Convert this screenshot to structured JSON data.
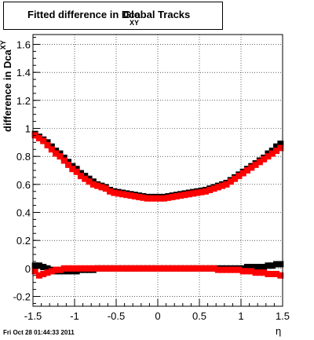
{
  "title": {
    "main": "Fitted difference in Dca",
    "subscript": "XY",
    "tail": "Global Tracks"
  },
  "footer": "Fri Oct 28 01:44:33 2011",
  "chart_data": {
    "type": "scatter",
    "xlabel": "η",
    "ylabel_main": "difference in Dca",
    "ylabel_sub": "XY",
    "xlim": [
      -1.5,
      1.5
    ],
    "ylim": [
      -0.27,
      1.67
    ],
    "x_ticks": [
      -1.5,
      -1,
      -0.5,
      0,
      0.5,
      1,
      1.5
    ],
    "x_tick_labels": [
      "-1.5",
      "-1",
      "-0.5",
      "0",
      "0.5",
      "1",
      "1.5"
    ],
    "y_ticks": [
      -0.2,
      0,
      0.2,
      0.4,
      0.6,
      0.8,
      1,
      1.2,
      1.4,
      1.6
    ],
    "y_tick_labels": [
      "-0.2",
      "0",
      "0.2",
      "0.4",
      "0.6",
      "0.8",
      "1",
      "1.2",
      "1.4",
      "1.6"
    ],
    "grid": true,
    "series": [
      {
        "color": "#000000",
        "marker": "square",
        "x": [
          -1.475,
          -1.425,
          -1.375,
          -1.325,
          -1.275,
          -1.225,
          -1.175,
          -1.125,
          -1.075,
          -1.025,
          -0.975,
          -0.925,
          -0.875,
          -0.825,
          -0.775,
          -0.725,
          -0.675,
          -0.625,
          -0.575,
          -0.525,
          -0.475,
          -0.425,
          -0.375,
          -0.325,
          -0.275,
          -0.225,
          -0.175,
          -0.125,
          -0.075,
          -0.025,
          0.025,
          0.075,
          0.125,
          0.175,
          0.225,
          0.275,
          0.325,
          0.375,
          0.425,
          0.475,
          0.525,
          0.575,
          0.625,
          0.675,
          0.725,
          0.775,
          0.825,
          0.875,
          0.925,
          0.975,
          1.025,
          1.075,
          1.125,
          1.175,
          1.225,
          1.275,
          1.325,
          1.375,
          1.425,
          1.475
        ],
        "y": [
          0.96,
          0.94,
          0.92,
          0.9,
          0.87,
          0.84,
          0.82,
          0.79,
          0.76,
          0.73,
          0.71,
          0.68,
          0.66,
          0.64,
          0.62,
          0.6,
          0.59,
          0.58,
          0.56,
          0.55,
          0.545,
          0.54,
          0.535,
          0.53,
          0.525,
          0.52,
          0.515,
          0.51,
          0.51,
          0.51,
          0.51,
          0.51,
          0.515,
          0.52,
          0.525,
          0.53,
          0.535,
          0.54,
          0.545,
          0.55,
          0.555,
          0.56,
          0.57,
          0.58,
          0.59,
          0.6,
          0.61,
          0.63,
          0.65,
          0.67,
          0.69,
          0.71,
          0.73,
          0.75,
          0.77,
          0.79,
          0.82,
          0.84,
          0.87,
          0.89
        ]
      },
      {
        "color": "#ff0000",
        "marker": "square",
        "x": [
          -1.475,
          -1.425,
          -1.375,
          -1.325,
          -1.275,
          -1.225,
          -1.175,
          -1.125,
          -1.075,
          -1.025,
          -0.975,
          -0.925,
          -0.875,
          -0.825,
          -0.775,
          -0.725,
          -0.675,
          -0.625,
          -0.575,
          -0.525,
          -0.475,
          -0.425,
          -0.375,
          -0.325,
          -0.275,
          -0.225,
          -0.175,
          -0.125,
          -0.075,
          -0.025,
          0.025,
          0.075,
          0.125,
          0.175,
          0.225,
          0.275,
          0.325,
          0.375,
          0.425,
          0.475,
          0.525,
          0.575,
          0.625,
          0.675,
          0.725,
          0.775,
          0.825,
          0.875,
          0.925,
          0.975,
          1.025,
          1.075,
          1.125,
          1.175,
          1.225,
          1.275,
          1.325,
          1.375,
          1.425,
          1.475
        ],
        "y": [
          0.95,
          0.93,
          0.91,
          0.88,
          0.85,
          0.82,
          0.8,
          0.77,
          0.74,
          0.71,
          0.69,
          0.66,
          0.64,
          0.62,
          0.6,
          0.59,
          0.58,
          0.57,
          0.55,
          0.54,
          0.535,
          0.53,
          0.525,
          0.52,
          0.515,
          0.51,
          0.505,
          0.5,
          0.5,
          0.5,
          0.5,
          0.5,
          0.505,
          0.51,
          0.515,
          0.52,
          0.525,
          0.53,
          0.535,
          0.54,
          0.545,
          0.55,
          0.56,
          0.57,
          0.58,
          0.59,
          0.6,
          0.62,
          0.64,
          0.66,
          0.68,
          0.7,
          0.72,
          0.74,
          0.76,
          0.78,
          0.8,
          0.82,
          0.84,
          0.86
        ]
      },
      {
        "color": "#000000",
        "marker": "square",
        "x": [
          -1.475,
          -1.425,
          -1.375,
          -1.325,
          -1.275,
          -1.225,
          -1.175,
          -1.125,
          -1.075,
          -1.025,
          -0.975,
          -0.925,
          -0.875,
          -0.825,
          -0.775,
          -0.725,
          -0.675,
          -0.625,
          -0.575,
          -0.525,
          -0.475,
          -0.425,
          -0.375,
          -0.325,
          -0.275,
          -0.225,
          -0.175,
          -0.125,
          -0.075,
          -0.025,
          0.025,
          0.075,
          0.125,
          0.175,
          0.225,
          0.275,
          0.325,
          0.375,
          0.425,
          0.475,
          0.525,
          0.575,
          0.625,
          0.675,
          0.725,
          0.775,
          0.825,
          0.875,
          0.925,
          0.975,
          1.025,
          1.075,
          1.125,
          1.175,
          1.225,
          1.275,
          1.325,
          1.375,
          1.425,
          1.475
        ],
        "y": [
          0.02,
          0.02,
          0.01,
          0.0,
          -0.01,
          -0.02,
          -0.02,
          -0.02,
          -0.02,
          -0.02,
          -0.02,
          -0.01,
          -0.01,
          -0.01,
          -0.01,
          0.0,
          0.0,
          0.0,
          0.0,
          0.0,
          0.0,
          0.0,
          0.0,
          0.0,
          0.0,
          0.0,
          0.0,
          0.0,
          0.0,
          0.0,
          0.0,
          0.0,
          0.0,
          0.0,
          0.0,
          0.0,
          0.0,
          0.0,
          0.0,
          0.0,
          0.0,
          0.0,
          0.0,
          0.0,
          0.0,
          0.0,
          0.0,
          0.0,
          0.0,
          0.0,
          0.0,
          0.01,
          0.01,
          0.01,
          0.01,
          0.01,
          0.02,
          0.02,
          0.03,
          0.03
        ]
      },
      {
        "color": "#ff0000",
        "marker": "square",
        "x": [
          -1.475,
          -1.425,
          -1.375,
          -1.325,
          -1.275,
          -1.225,
          -1.175,
          -1.125,
          -1.075,
          -1.025,
          -0.975,
          -0.925,
          -0.875,
          -0.825,
          -0.775,
          -0.725,
          -0.675,
          -0.625,
          -0.575,
          -0.525,
          -0.475,
          -0.425,
          -0.375,
          -0.325,
          -0.275,
          -0.225,
          -0.175,
          -0.125,
          -0.075,
          -0.025,
          0.025,
          0.075,
          0.125,
          0.175,
          0.225,
          0.275,
          0.325,
          0.375,
          0.425,
          0.475,
          0.525,
          0.575,
          0.625,
          0.675,
          0.725,
          0.775,
          0.825,
          0.875,
          0.925,
          0.975,
          1.025,
          1.075,
          1.125,
          1.175,
          1.225,
          1.275,
          1.325,
          1.375,
          1.425,
          1.475
        ],
        "y": [
          -0.02,
          -0.05,
          -0.04,
          -0.03,
          -0.02,
          -0.01,
          -0.01,
          0.0,
          0.0,
          0.0,
          0.0,
          0.0,
          0.0,
          0.0,
          0.0,
          0.0,
          0.0,
          0.0,
          0.0,
          0.0,
          0.0,
          0.0,
          0.0,
          0.0,
          0.0,
          0.0,
          0.0,
          0.0,
          0.0,
          0.0,
          0.0,
          0.0,
          0.0,
          0.0,
          0.0,
          0.0,
          0.0,
          0.0,
          0.0,
          0.0,
          0.0,
          0.0,
          0.0,
          0.0,
          -0.01,
          -0.01,
          -0.01,
          -0.01,
          -0.01,
          -0.01,
          -0.02,
          -0.02,
          -0.02,
          -0.03,
          -0.03,
          -0.03,
          -0.04,
          -0.04,
          -0.04,
          -0.05
        ]
      }
    ]
  }
}
